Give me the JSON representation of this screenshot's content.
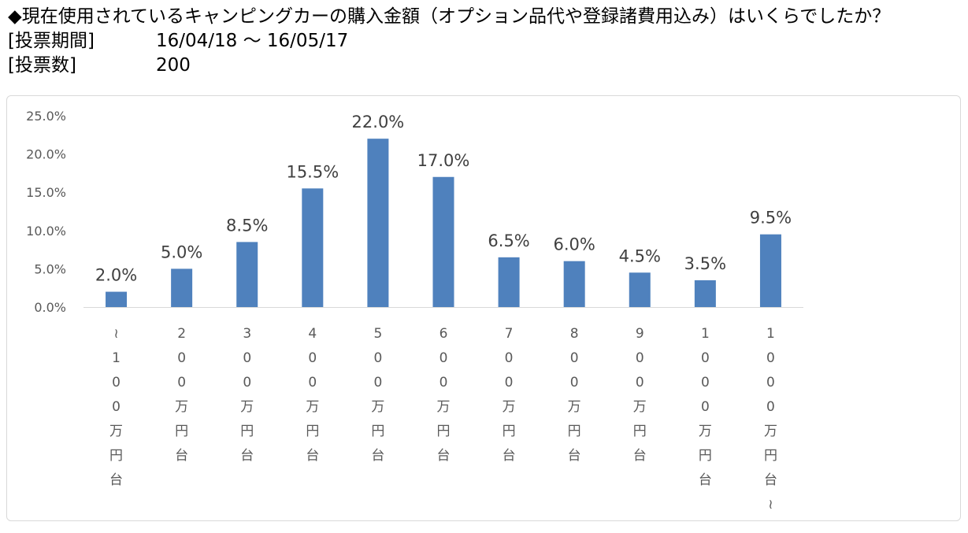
{
  "header": {
    "title": "◆現在使用されているキャンピングカーの購入金額（オプション品代や登録諸費用込み）はいくらでしたか？",
    "period_label": "[投票期間]",
    "period_value": "16/04/18 ～ 16/05/17",
    "votes_label": "[投票数]",
    "votes_value": "200"
  },
  "chart_data": {
    "type": "bar",
    "categories": [
      "～100万円台",
      "200万円台",
      "300万円台",
      "400万円台",
      "500万円台",
      "600万円台",
      "700万円台",
      "800万円台",
      "900万円台",
      "1000万円台",
      "1000万円台～"
    ],
    "values": [
      2.0,
      5.0,
      8.5,
      15.5,
      22.0,
      17.0,
      6.5,
      6.0,
      4.5,
      3.5,
      9.5
    ],
    "data_labels": [
      "2.0%",
      "5.0%",
      "8.5%",
      "15.5%",
      "22.0%",
      "17.0%",
      "6.5%",
      "6.0%",
      "4.5%",
      "3.5%",
      "9.5%"
    ],
    "y_ticks": [
      "0.0%",
      "5.0%",
      "10.0%",
      "15.0%",
      "20.0%",
      "25.0%"
    ],
    "ylim": [
      0,
      25
    ],
    "grid": false,
    "bar_color": "#4f81bd"
  }
}
